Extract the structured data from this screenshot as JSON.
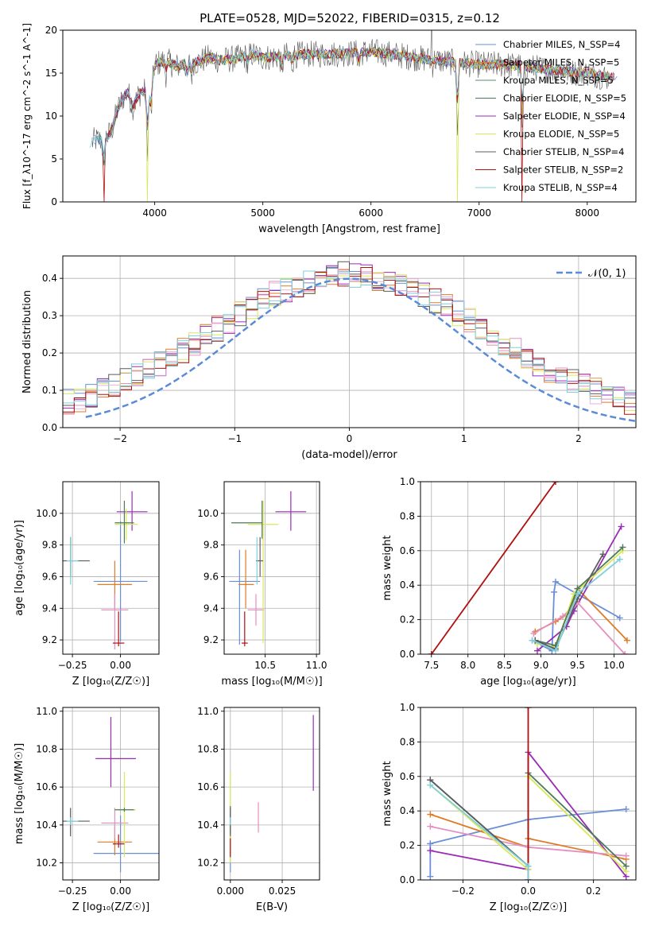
{
  "title": "PLATE=0528, MJD=52022, FIBERID=0315, z=0.12",
  "palette": {
    "chabrier_miles": "#6a8fd6",
    "salpeter_miles": "#e07b26",
    "kroupa_miles": "#9a2db5",
    "chabrier_elodie": "#e58fc1",
    "salpeter_elodie": "#e8b3d9",
    "kroupa_elodie": "#d9e85a",
    "chabrier_stelib": "#5c5c5c",
    "salpeter_stelib": "#b01010",
    "kroupa_stelib": "#7fd0dc",
    "normal_curve": "#5b8ad6"
  },
  "chart_data": [
    {
      "type": "line",
      "panel": "spectrum",
      "xlabel": "wavelength [Angstrom, rest frame]",
      "ylabel": "Flux [f_λ10^-17 erg cm^-2 s^-1 A^-1]",
      "xlim": [
        3150,
        8450
      ],
      "ylim": [
        0,
        20
      ],
      "xticks": [
        4000,
        5000,
        6000,
        7000,
        8000
      ],
      "yticks": [
        0,
        5,
        10,
        15,
        20
      ],
      "legend_placement": "top-right",
      "legend": [
        "Chabrier MILES, N_SSP=4",
        "Salpeter MILES, N_SSP=5",
        "Kroupa MILES, N_SSP=5",
        "Chabrier ELODIE, N_SSP=5",
        "Salpeter ELODIE, N_SSP=4",
        "Kroupa ELODIE, N_SSP=5",
        "Chabrier STELIB, N_SSP=4",
        "Salpeter STELIB, N_SSP=2",
        "Kroupa STELIB, N_SSP=4"
      ],
      "legend_colors": [
        "#6a8fd6",
        "#e07b26",
        "#5b8a6e",
        "#4d7a5a",
        "#9a2db5",
        "#d9e85a",
        "#5c5c5c",
        "#b01010",
        "#7fd0dc"
      ],
      "envelope": {
        "x": [
          3400,
          3450,
          3500,
          3550,
          3600,
          3650,
          3700,
          3750,
          3800,
          3850,
          3900,
          3950,
          4000,
          4100,
          4200,
          4300,
          4400,
          4500,
          4600,
          4700,
          4800,
          4900,
          5000,
          5200,
          5400,
          5600,
          5800,
          6000,
          6200,
          6400,
          6600,
          6800,
          7000,
          7200,
          7400,
          7600,
          7800,
          8000,
          8200
        ],
        "y": [
          6.8,
          7.2,
          7.2,
          7.5,
          8.2,
          10.5,
          12.0,
          12.8,
          11.0,
          12.5,
          13.0,
          12.0,
          16.0,
          16.5,
          15.8,
          16.2,
          16.3,
          16.8,
          16.5,
          16.6,
          16.8,
          17.2,
          16.8,
          17.0,
          17.2,
          17.2,
          17.3,
          17.5,
          17.2,
          16.8,
          16.5,
          16.2,
          16.0,
          16.0,
          15.8,
          15.5,
          15.2,
          15.0,
          14.5
        ]
      },
      "features": [
        {
          "x": 3530,
          "depth": 7.5
        },
        {
          "x": 3933,
          "depth": 12
        },
        {
          "x": 3968,
          "depth": 6
        },
        {
          "x": 4102,
          "depth": 3
        },
        {
          "x": 4300,
          "depth": 4
        },
        {
          "x": 4340,
          "depth": 3
        },
        {
          "x": 4861,
          "depth": 2.5
        },
        {
          "x": 5175,
          "depth": 3.5
        },
        {
          "x": 5270,
          "depth": 2
        },
        {
          "x": 5890,
          "depth": 3
        },
        {
          "x": 6563,
          "depth": 1.5
        },
        {
          "x": 6800,
          "depth": 15
        },
        {
          "x": 7400,
          "depth": 15
        }
      ]
    },
    {
      "type": "histogram",
      "panel": "residuals",
      "xlabel": "(data-model)/error",
      "ylabel": "Normed distribution",
      "xlim": [
        -2.5,
        2.5
      ],
      "ylim": [
        0,
        0.46
      ],
      "xticks": [
        -2,
        -1,
        0,
        1,
        2
      ],
      "yticks": [
        0.0,
        0.1,
        0.2,
        0.3,
        0.4
      ],
      "grid": true,
      "legend_placement": "top-right",
      "legend": [
        "𝒩(0, 1)"
      ],
      "bin_width": 0.1,
      "normal": {
        "mean": 0,
        "sigma": 1
      }
    },
    {
      "type": "scatter",
      "panel": "age-vs-Z",
      "xlabel": "Z [log₁₀(Z/Z☉)]",
      "ylabel": "age  [log₁₀(age/yr)]",
      "xlim": [
        -0.3,
        0.2
      ],
      "ylim": [
        9.11,
        10.2
      ],
      "xticks": [
        -0.25,
        0.0
      ],
      "yticks": [
        9.2,
        9.4,
        9.6,
        9.8,
        10.0
      ],
      "grid": true,
      "points": [
        {
          "x": 0.0,
          "y": 9.57,
          "xerr": [
            0.14,
            0.14
          ],
          "yerr": [
            0.38,
            0.38
          ],
          "c": "#6a8fd6"
        },
        {
          "x": -0.03,
          "y": 9.55,
          "xerr": [
            0.09,
            0.09
          ],
          "yerr": [
            0.15,
            0.15
          ],
          "c": "#e07b26"
        },
        {
          "x": 0.06,
          "y": 10.01,
          "xerr": [
            0.08,
            0.08
          ],
          "yerr": [
            0.12,
            0.13
          ],
          "c": "#9a2db5"
        },
        {
          "x": -0.03,
          "y": 9.39,
          "xerr": [
            0.07,
            0.07
          ],
          "yerr": [
            0.25,
            0.1
          ],
          "c": "#e58fc1"
        },
        {
          "x": 0.03,
          "y": 9.93,
          "xerr": [
            0.06,
            0.06
          ],
          "yerr": [
            0.1,
            0.1
          ],
          "c": "#d9e85a"
        },
        {
          "x": 0.02,
          "y": 9.94,
          "xerr": [
            0.05,
            0.05
          ],
          "yerr": [
            0.13,
            0.14
          ],
          "c": "#4d7a5a"
        },
        {
          "x": -0.26,
          "y": 9.7,
          "xerr": [
            0.04,
            0.1
          ],
          "yerr": [
            0.1,
            0.15
          ],
          "c": "#5c5c5c"
        },
        {
          "x": -0.01,
          "y": 9.18,
          "xerr": [
            0.03,
            0.03
          ],
          "yerr": [
            0.02,
            0.2
          ],
          "c": "#b01010"
        },
        {
          "x": -0.26,
          "y": 9.7,
          "xerr": [
            0.02,
            0.04
          ],
          "yerr": [
            0.15,
            0.15
          ],
          "c": "#7fd0dc"
        }
      ]
    },
    {
      "type": "scatter",
      "panel": "age-vs-mass",
      "xlabel": "mass [log₁₀(M/M☉)]",
      "ylabel": "",
      "xlim": [
        10.1,
        11.03
      ],
      "ylim": [
        9.11,
        10.2
      ],
      "xticks": [
        10.5,
        11.0
      ],
      "yticks": [
        9.2,
        9.4,
        9.6,
        9.8,
        10.0
      ],
      "grid": true,
      "points": [
        {
          "x": 10.25,
          "y": 9.57,
          "xerr": [
            0.1,
            0.2
          ],
          "yerr": [
            0.4,
            0.2
          ],
          "c": "#6a8fd6"
        },
        {
          "x": 10.31,
          "y": 9.55,
          "xerr": [
            0.07,
            0.08
          ],
          "yerr": [
            0.15,
            0.22
          ],
          "c": "#e07b26"
        },
        {
          "x": 10.75,
          "y": 10.01,
          "xerr": [
            0.15,
            0.15
          ],
          "yerr": [
            0.12,
            0.13
          ],
          "c": "#9a2db5"
        },
        {
          "x": 10.41,
          "y": 9.39,
          "xerr": [
            0.08,
            0.08
          ],
          "yerr": [
            0.1,
            0.1
          ],
          "c": "#e58fc1"
        },
        {
          "x": 10.48,
          "y": 9.93,
          "xerr": [
            0.15,
            0.15
          ],
          "yerr": [
            0.75,
            0.15
          ],
          "c": "#d9e85a"
        },
        {
          "x": 10.47,
          "y": 9.94,
          "xerr": [
            0.3,
            0.0
          ],
          "yerr": [
            0.1,
            0.14
          ],
          "c": "#4d7a5a"
        },
        {
          "x": 10.45,
          "y": 9.7,
          "xerr": [
            0.04,
            0.03
          ],
          "yerr": [
            0.1,
            0.15
          ],
          "c": "#5c5c5c"
        },
        {
          "x": 10.3,
          "y": 9.18,
          "xerr": [
            0.03,
            0.03
          ],
          "yerr": [
            0.02,
            0.2
          ],
          "c": "#b01010"
        },
        {
          "x": 10.42,
          "y": 9.7,
          "xerr": [
            0.0,
            0.0
          ],
          "yerr": [
            0.15,
            0.15
          ],
          "c": "#7fd0dc"
        }
      ]
    },
    {
      "type": "line",
      "panel": "weight-vs-age",
      "xlabel": "age  [log₁₀(age/yr)]",
      "ylabel": "mass weight",
      "xlim": [
        7.35,
        10.3
      ],
      "ylim": [
        0,
        1.0
      ],
      "xticks": [
        7.5,
        8.0,
        8.5,
        9.0,
        9.5,
        10.0
      ],
      "yticks": [
        0.0,
        0.2,
        0.4,
        0.6,
        0.8,
        1.0
      ],
      "grid": true,
      "series": [
        {
          "c": "#6a8fd6",
          "x": [
            8.88,
            9.15,
            9.18,
            9.2,
            10.08
          ],
          "y": [
            0.08,
            0.02,
            0.36,
            0.42,
            0.21
          ]
        },
        {
          "c": "#e07b26",
          "x": [
            8.92,
            9.2,
            9.4,
            9.5,
            10.18
          ],
          "y": [
            0.13,
            0.19,
            0.24,
            0.38,
            0.08
          ]
        },
        {
          "c": "#9a2db5",
          "x": [
            8.95,
            9.35,
            9.45,
            10.1
          ],
          "y": [
            0.02,
            0.16,
            0.25,
            0.74
          ]
        },
        {
          "c": "#e58fc1",
          "x": [
            8.9,
            9.3,
            9.5,
            10.15
          ],
          "y": [
            0.12,
            0.22,
            0.3,
            0.0
          ]
        },
        {
          "c": "#d9e85a",
          "x": [
            8.95,
            9.2,
            9.45,
            10.12
          ],
          "y": [
            0.06,
            0.04,
            0.35,
            0.6
          ]
        },
        {
          "c": "#4d7a5a",
          "x": [
            8.92,
            9.2,
            9.5,
            10.12
          ],
          "y": [
            0.08,
            0.05,
            0.38,
            0.62
          ]
        },
        {
          "c": "#5c5c5c",
          "x": [
            8.92,
            9.2,
            9.5,
            9.85
          ],
          "y": [
            0.08,
            0.03,
            0.32,
            0.58
          ]
        },
        {
          "c": "#b01010",
          "x": [
            7.5,
            9.2
          ],
          "y": [
            0.0,
            1.0
          ]
        },
        {
          "c": "#7fd0dc",
          "x": [
            8.88,
            9.2,
            9.5,
            10.08
          ],
          "y": [
            0.08,
            0.02,
            0.35,
            0.55
          ]
        }
      ]
    },
    {
      "type": "scatter",
      "panel": "mass-vs-Z",
      "xlabel": "Z [log₁₀(Z/Z☉)]",
      "ylabel": "mass [log₁₀(M/M☉)]",
      "xlim": [
        -0.3,
        0.2
      ],
      "ylim": [
        10.11,
        11.02
      ],
      "xticks": [
        -0.25,
        0.0
      ],
      "yticks": [
        10.2,
        10.4,
        10.6,
        10.8,
        11.0
      ],
      "grid": true,
      "points": [
        {
          "x": -0.0,
          "y": 10.25,
          "xerr": [
            0.14,
            0.22
          ],
          "yerr": [
            0.1,
            0.2
          ],
          "c": "#6a8fd6"
        },
        {
          "x": -0.03,
          "y": 10.31,
          "xerr": [
            0.09,
            0.09
          ],
          "yerr": [
            0.07,
            0.08
          ],
          "c": "#e07b26"
        },
        {
          "x": -0.05,
          "y": 10.75,
          "xerr": [
            0.08,
            0.13
          ],
          "yerr": [
            0.15,
            0.22
          ],
          "c": "#9a2db5"
        },
        {
          "x": -0.03,
          "y": 10.41,
          "xerr": [
            0.07,
            0.07
          ],
          "yerr": [
            0.08,
            0.08
          ],
          "c": "#e58fc1"
        },
        {
          "x": 0.02,
          "y": 10.48,
          "xerr": [
            0.05,
            0.06
          ],
          "yerr": [
            0.25,
            0.2
          ],
          "c": "#d9e85a"
        },
        {
          "x": 0.02,
          "y": 10.48,
          "xerr": [
            0.05,
            0.05
          ],
          "yerr": [
            0.01,
            0.01
          ],
          "c": "#4d7a5a"
        },
        {
          "x": -0.26,
          "y": 10.42,
          "xerr": [
            0.04,
            0.1
          ],
          "yerr": [
            0.08,
            0.07
          ],
          "c": "#5c5c5c"
        },
        {
          "x": -0.01,
          "y": 10.3,
          "xerr": [
            0.03,
            0.03
          ],
          "yerr": [
            0.02,
            0.05
          ],
          "c": "#b01010"
        },
        {
          "x": -0.26,
          "y": 10.42,
          "xerr": [
            0.02,
            0.04
          ],
          "yerr": [
            0.02,
            0.02
          ],
          "c": "#7fd0dc"
        }
      ]
    },
    {
      "type": "scatter",
      "panel": "mass-vs-EBV",
      "xlabel": "E(B-V)",
      "ylabel": "",
      "xlim": [
        -0.003,
        0.043
      ],
      "ylim": [
        10.11,
        11.02
      ],
      "xticks": [
        0.0,
        0.025
      ],
      "yticks": [
        10.2,
        10.4,
        10.6,
        10.8,
        11.0
      ],
      "grid": true,
      "points": [
        {
          "x": 0.0,
          "y": 10.25,
          "xerr": [
            0,
            0
          ],
          "yerr": [
            0.1,
            0.1
          ],
          "c": "#6a8fd6"
        },
        {
          "x": 0.0,
          "y": 10.31,
          "xerr": [
            0,
            0
          ],
          "yerr": [
            0.07,
            0.08
          ],
          "c": "#e07b26"
        },
        {
          "x": 0.04,
          "y": 10.78,
          "xerr": [
            0,
            0
          ],
          "yerr": [
            0.2,
            0.2
          ],
          "c": "#9a2db5"
        },
        {
          "x": 0.0135,
          "y": 10.44,
          "xerr": [
            0,
            0
          ],
          "yerr": [
            0.08,
            0.08
          ],
          "c": "#e58fc1"
        },
        {
          "x": 0.0,
          "y": 10.45,
          "xerr": [
            0,
            0
          ],
          "yerr": [
            0.25,
            0.23
          ],
          "c": "#d9e85a"
        },
        {
          "x": 0.0,
          "y": 10.42,
          "xerr": [
            0,
            0
          ],
          "yerr": [
            0.08,
            0.08
          ],
          "c": "#4d7a5a"
        },
        {
          "x": 0.0,
          "y": 10.42,
          "xerr": [
            0,
            0
          ],
          "yerr": [
            0.07,
            0.07
          ],
          "c": "#5c5c5c"
        },
        {
          "x": 0.0,
          "y": 10.28,
          "xerr": [
            0,
            0
          ],
          "yerr": [
            0.05,
            0.05
          ],
          "c": "#b01010"
        },
        {
          "x": 0.0,
          "y": 10.42,
          "xerr": [
            0,
            0
          ],
          "yerr": [
            0.02,
            0.02
          ],
          "c": "#7fd0dc"
        }
      ]
    },
    {
      "type": "line",
      "panel": "weight-vs-Z",
      "xlabel": "Z [log₁₀(Z/Z☉)]",
      "ylabel": "mass weight",
      "xlim": [
        -0.33,
        0.33
      ],
      "ylim": [
        0,
        1.0
      ],
      "xticks": [
        -0.2,
        0.0,
        0.2
      ],
      "yticks": [
        0.0,
        0.2,
        0.4,
        0.6,
        0.8,
        1.0
      ],
      "grid": true,
      "series": [
        {
          "c": "#6a8fd6",
          "x": [
            -0.3,
            0.0,
            0.3
          ],
          "y": [
            0.21,
            0.35,
            0.41
          ]
        },
        {
          "c": "#6a8fd6",
          "x": [
            -0.3,
            -0.3
          ],
          "y": [
            0.02,
            0.21
          ]
        },
        {
          "c": "#e07b26",
          "x": [
            -0.3,
            0.0,
            0.0,
            0.3
          ],
          "y": [
            0.38,
            0.19,
            0.24,
            0.12
          ]
        },
        {
          "c": "#9a2db5",
          "x": [
            -0.3,
            0.0,
            0.0,
            0.3
          ],
          "y": [
            0.17,
            0.06,
            0.74,
            0.02
          ]
        },
        {
          "c": "#e58fc1",
          "x": [
            -0.3,
            0.0,
            0.3
          ],
          "y": [
            0.31,
            0.19,
            0.14
          ]
        },
        {
          "c": "#d9e85a",
          "x": [
            -0.3,
            0.0,
            0.0,
            0.3
          ],
          "y": [
            0.55,
            0.06,
            0.6,
            0.05
          ]
        },
        {
          "c": "#4d7a5a",
          "x": [
            -0.3,
            0.0,
            0.0,
            0.3
          ],
          "y": [
            0.58,
            0.08,
            0.62,
            0.08
          ]
        },
        {
          "c": "#5c5c5c",
          "x": [
            -0.3,
            0.0
          ],
          "y": [
            0.58,
            0.08
          ]
        },
        {
          "c": "#b01010",
          "x": [
            0.0,
            0.0
          ],
          "y": [
            0.0,
            1.0
          ]
        },
        {
          "c": "#7fd0dc",
          "x": [
            -0.3,
            0.0,
            0.0
          ],
          "y": [
            0.55,
            0.08,
            0.0
          ]
        }
      ]
    }
  ]
}
